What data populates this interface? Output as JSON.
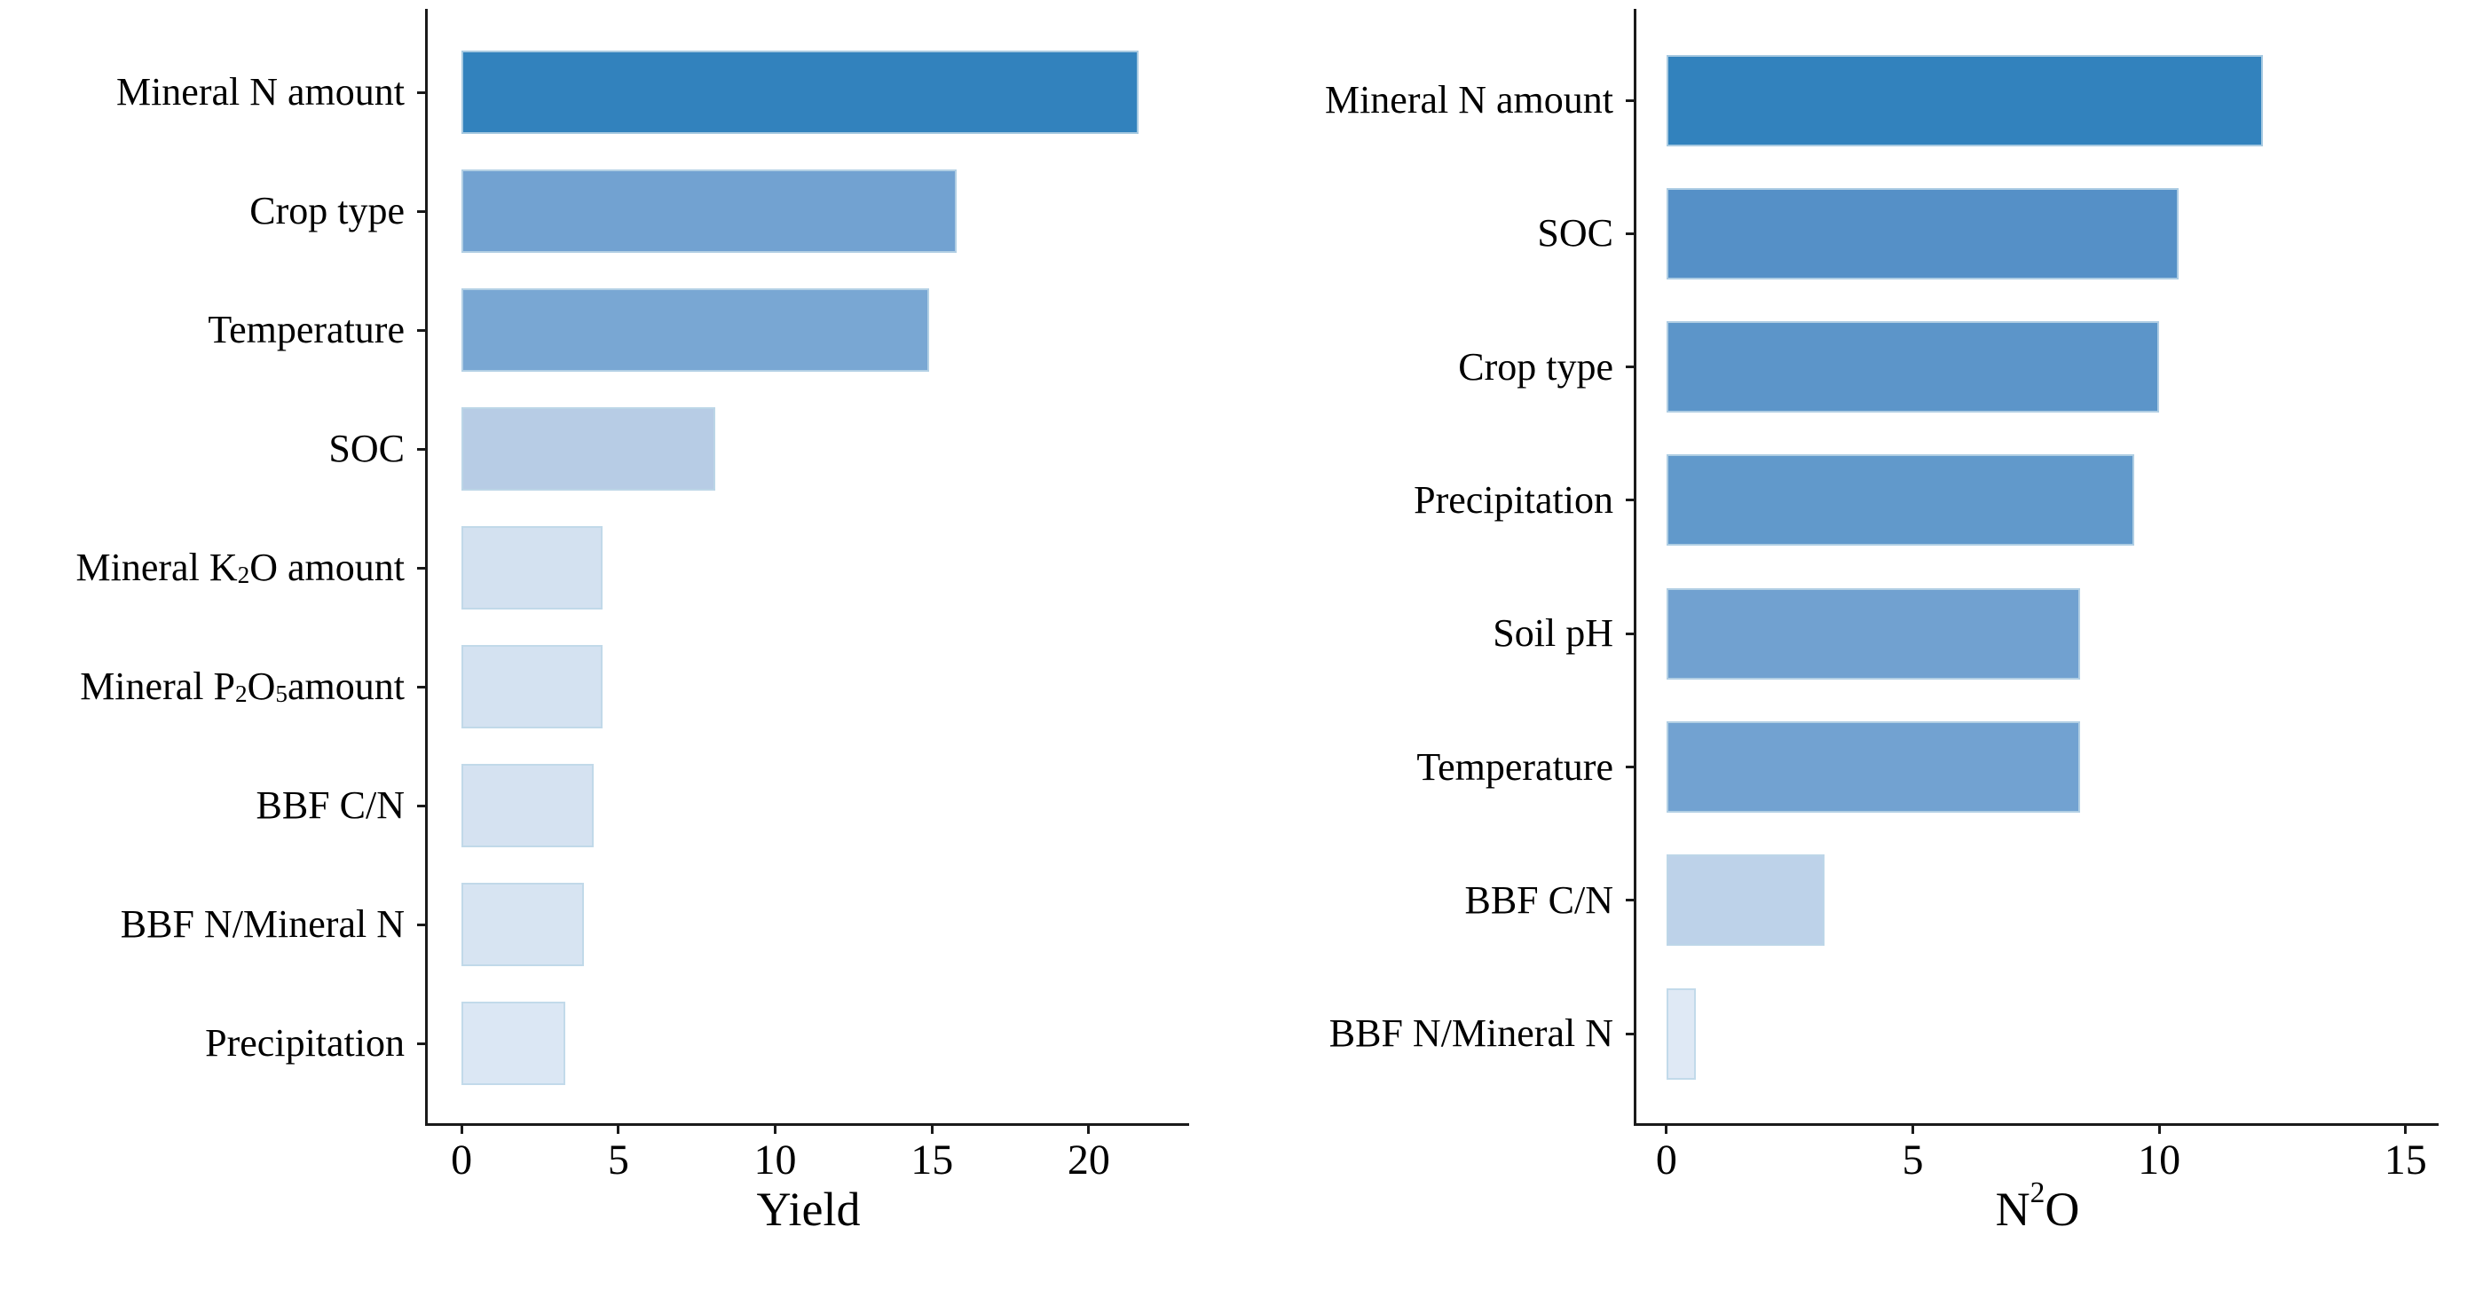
{
  "figure": {
    "background": "#ffffff",
    "axis_color": "#1a1a1a",
    "accent_dark": "#3282bd",
    "accent_light": "#dfe9f5",
    "description": "Two horizontal bar charts of variable importance, left for Yield and right for N2O, bars shaded blue from dark (high) to light (low), no gridlines, no legend"
  },
  "chart_data": [
    {
      "type": "bar",
      "orientation": "horizontal",
      "panel": "left",
      "xlabel_text": "Yield",
      "xlabel_html": "Yield",
      "x_ticks": [
        0,
        5,
        10,
        15,
        20
      ],
      "x_range": [
        -1.08,
        23.2
      ],
      "grid": false,
      "legend": false,
      "bars": [
        {
          "label_text": "Mineral N amount",
          "label_html": "Mineral N amount",
          "value": 21.6,
          "color": "#3282bd"
        },
        {
          "label_text": "Crop type",
          "label_html": "Crop type",
          "value": 15.8,
          "color": "#72a2d1"
        },
        {
          "label_text": "Temperature",
          "label_html": "Temperature",
          "value": 14.9,
          "color": "#79a7d3"
        },
        {
          "label_text": "SOC",
          "label_html": "SOC",
          "value": 8.1,
          "color": "#b7cce5"
        },
        {
          "label_text": "Mineral K2O amount",
          "label_html": "Mineral K<sub>2</sub>O amount",
          "value": 4.5,
          "color": "#d3e1f0"
        },
        {
          "label_text": "Mineral P2O5 amount",
          "label_html": "Mineral P<sub>2</sub>O<sub>5</sub> amount",
          "value": 4.5,
          "color": "#d4e2f1"
        },
        {
          "label_text": "BBF C/N",
          "label_html": "BBF C/N",
          "value": 4.2,
          "color": "#d5e2f1"
        },
        {
          "label_text": "BBF N/Mineral N",
          "label_html": "BBF N/Mineral N",
          "value": 3.9,
          "color": "#d7e4f2"
        },
        {
          "label_text": "Precipitation",
          "label_html": "Precipitation",
          "value": 3.3,
          "color": "#dbe7f4"
        }
      ]
    },
    {
      "type": "bar",
      "orientation": "horizontal",
      "panel": "right",
      "xlabel_text": "N2O",
      "xlabel_html": "N<sub>2</sub>O",
      "x_ticks": [
        0,
        5,
        10,
        15
      ],
      "x_range": [
        -0.61,
        15.67
      ],
      "grid": false,
      "legend": false,
      "bars": [
        {
          "label_text": "Mineral N amount",
          "label_html": "Mineral N amount",
          "value": 12.1,
          "color": "#3282bd"
        },
        {
          "label_text": "SOC",
          "label_html": "SOC",
          "value": 10.4,
          "color": "#5590c7"
        },
        {
          "label_text": "Crop type",
          "label_html": "Crop type",
          "value": 10.0,
          "color": "#5c95c9"
        },
        {
          "label_text": "Precipitation",
          "label_html": "Precipitation",
          "value": 9.5,
          "color": "#6199cb"
        },
        {
          "label_text": "Soil pH",
          "label_html": "Soil pH",
          "value": 8.4,
          "color": "#71a1d0"
        },
        {
          "label_text": "Temperature",
          "label_html": "Temperature",
          "value": 8.4,
          "color": "#72a2d1"
        },
        {
          "label_text": "BBF C/N",
          "label_html": "BBF C/N",
          "value": 3.2,
          "color": "#bdd2e9"
        },
        {
          "label_text": "BBF N/Mineral N",
          "label_html": "BBF N/Mineral N",
          "value": 0.6,
          "color": "#dfe9f5"
        }
      ]
    }
  ]
}
